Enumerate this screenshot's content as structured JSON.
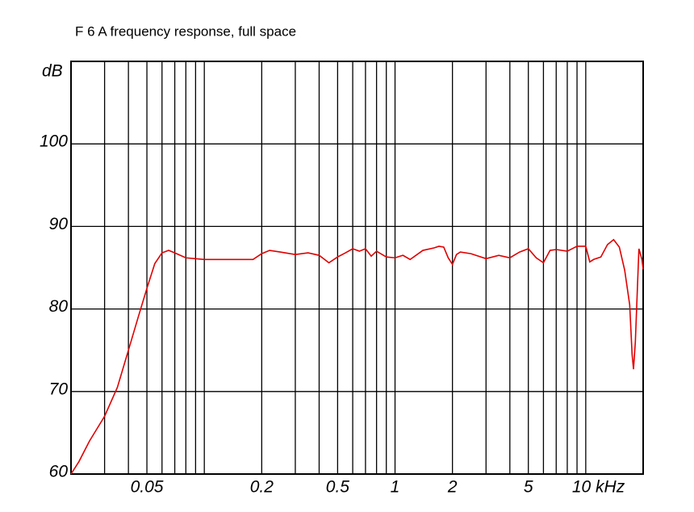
{
  "chart_data": {
    "type": "line",
    "title": "F 6 A frequency response, full space",
    "y_label": "dB",
    "x": [
      0.02,
      0.022,
      0.025,
      0.03,
      0.035,
      0.04,
      0.045,
      0.05,
      0.055,
      0.06,
      0.065,
      0.07,
      0.08,
      0.1,
      0.15,
      0.18,
      0.2,
      0.22,
      0.25,
      0.3,
      0.35,
      0.4,
      0.45,
      0.5,
      0.55,
      0.6,
      0.65,
      0.7,
      0.75,
      0.8,
      0.9,
      1,
      1.1,
      1.2,
      1.4,
      1.6,
      1.7,
      1.8,
      1.9,
      2.0,
      2.1,
      2.2,
      2.5,
      3,
      3.5,
      4,
      4.5,
      5,
      5.5,
      6,
      6.5,
      7,
      8,
      9,
      10,
      10.5,
      11,
      12,
      13,
      14,
      15,
      16,
      17,
      17.5,
      17.8,
      18.2,
      19,
      19.7,
      20
    ],
    "values": [
      60,
      61.5,
      64,
      67,
      70.5,
      75,
      79,
      82.5,
      85.5,
      86.8,
      87.1,
      86.8,
      86.2,
      86.0,
      86.0,
      86.0,
      86.7,
      87.1,
      86.9,
      86.6,
      86.8,
      86.5,
      85.6,
      86.3,
      86.8,
      87.3,
      87.0,
      87.3,
      86.4,
      87.0,
      86.3,
      86.2,
      86.5,
      86.0,
      87.1,
      87.4,
      87.6,
      87.5,
      86.2,
      85.4,
      86.6,
      86.9,
      86.7,
      86.1,
      86.5,
      86.2,
      86.9,
      87.3,
      86.2,
      85.6,
      87.1,
      87.2,
      87.0,
      87.6,
      87.6,
      85.7,
      86.0,
      86.3,
      87.8,
      88.4,
      87.5,
      84.7,
      80.5,
      74.5,
      72.7,
      76,
      87.3,
      86,
      84.8
    ],
    "color": "#e00000",
    "x_scale": "log",
    "xlim": [
      0.02,
      20
    ],
    "ylim": [
      60,
      110
    ],
    "xticks": [
      0.05,
      0.2,
      0.5,
      1,
      2,
      5,
      {
        "value": 10,
        "label": "10 kHz"
      }
    ],
    "xgrid": [
      0.03,
      0.04,
      0.05,
      0.06,
      0.07,
      0.08,
      0.09,
      0.1,
      0.2,
      0.3,
      0.4,
      0.5,
      0.6,
      0.7,
      0.8,
      0.9,
      1,
      2,
      3,
      4,
      5,
      6,
      7,
      8,
      9,
      10
    ],
    "yticks": [
      60,
      70,
      80,
      90,
      100
    ],
    "ygrid": [
      70,
      80,
      90,
      100
    ]
  }
}
